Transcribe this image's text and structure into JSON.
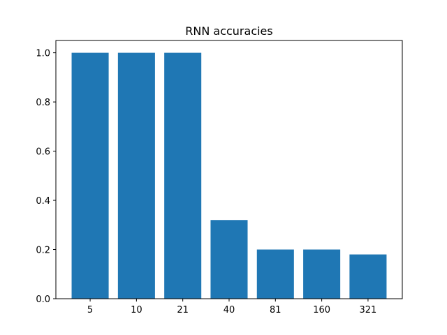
{
  "chart_data": {
    "type": "bar",
    "title": "RNN accuracies",
    "xlabel": "",
    "ylabel": "",
    "categories": [
      "5",
      "10",
      "21",
      "40",
      "81",
      "160",
      "321"
    ],
    "values": [
      1.0,
      1.0,
      1.0,
      0.32,
      0.2,
      0.2,
      0.18
    ],
    "ylim": [
      0,
      1.05
    ],
    "yticks": [
      "0.0",
      "0.2",
      "0.4",
      "0.6",
      "0.8",
      "1.0"
    ],
    "bar_color": "#1f77b4",
    "grid": false,
    "legend": "none"
  }
}
